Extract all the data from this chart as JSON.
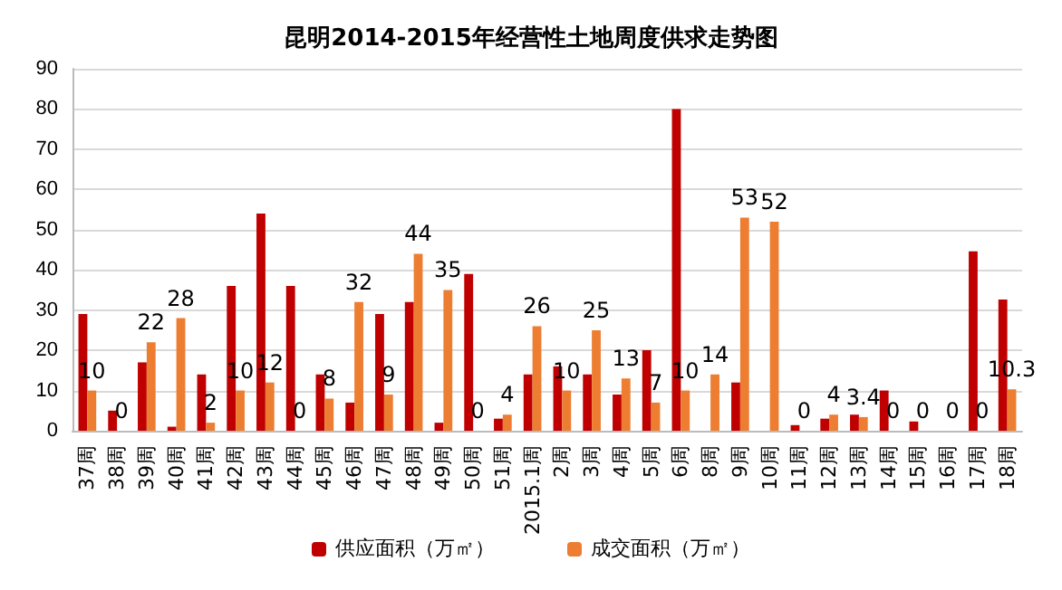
{
  "chart_data": {
    "type": "bar",
    "title": "昆明2014-2015年经营性土地周度供求走势图",
    "categories": [
      "37周",
      "38周",
      "39周",
      "40周",
      "41周",
      "42周",
      "43周",
      "44周",
      "45周",
      "46周",
      "47周",
      "48周",
      "49周",
      "50周",
      "51周",
      "2015.1周",
      "2周",
      "3周",
      "4周",
      "5周",
      "6周",
      "8周",
      "9周",
      "10周",
      "11周",
      "12周",
      "13周",
      "14周",
      "15周",
      "16周",
      "17周",
      "18周"
    ],
    "series": [
      {
        "name": "供应面积（万㎡）",
        "color": "#c00000",
        "values": [
          29,
          5,
          17,
          1,
          14,
          36,
          54,
          36,
          14,
          7,
          29,
          32,
          2,
          39,
          3,
          14,
          16,
          14,
          9,
          20,
          80,
          0,
          12,
          0,
          1.4,
          3,
          4,
          10,
          2.3,
          0,
          44.6,
          32.6
        ]
      },
      {
        "name": "成交面积（万㎡）",
        "color": "#ed7d31",
        "values": [
          10,
          0,
          22,
          28,
          2,
          10,
          12,
          0,
          8,
          32,
          9,
          44,
          35,
          0,
          4,
          26,
          10,
          25,
          13,
          7,
          10,
          14,
          53,
          52,
          0,
          4,
          3.4,
          0,
          0,
          0,
          0,
          10.3
        ],
        "value_labels": [
          "10",
          "0",
          "22",
          "28",
          "2",
          "10",
          "12",
          "0",
          "8",
          "32",
          "9",
          "44",
          "35",
          "0",
          "4",
          "26",
          "10",
          "25",
          "13",
          "7",
          "10",
          "14",
          "53",
          "52",
          "0",
          "4",
          "3.4",
          "0",
          "0",
          "0",
          "0",
          "10.3"
        ]
      }
    ],
    "ylim": [
      0,
      90
    ],
    "yticks": [
      0,
      10,
      20,
      30,
      40,
      50,
      60,
      70,
      80,
      90
    ],
    "grid": "y",
    "legend": "bottom"
  }
}
